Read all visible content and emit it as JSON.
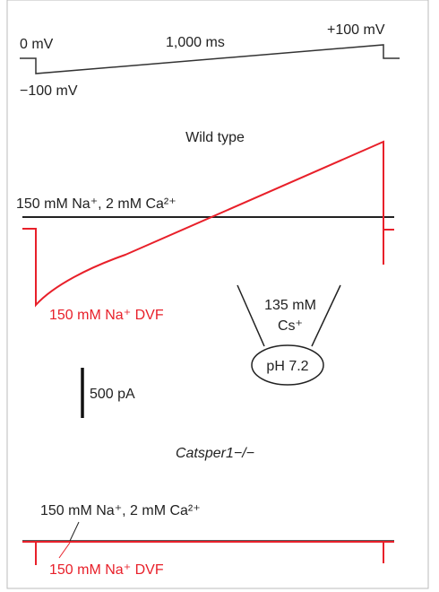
{
  "protocol": {
    "start_label": "0 mV",
    "duration_label": "1,000 ms",
    "end_label": "+100 mV",
    "hold_label": "−100 mV"
  },
  "wild_type": {
    "title": "Wild type",
    "control_label": "150 mM Na⁺, 2 mM Ca²⁺",
    "dvf_label": "150 mM Na⁺ DVF"
  },
  "pipette": {
    "concentration": "135 mM",
    "ion": "Cs⁺",
    "ph": "pH 7.2"
  },
  "scale_bar": {
    "label": "500 pA"
  },
  "knockout": {
    "title": "Catsper1−/−",
    "control_label": "150 mM Na⁺, 2 mM Ca²⁺",
    "dvf_label": "150 mM Na⁺ DVF"
  }
}
